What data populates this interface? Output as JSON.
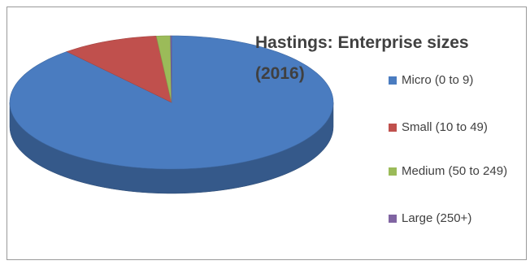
{
  "chart_data": {
    "type": "pie",
    "title": "Hastings: Enterprise sizes (2016)",
    "categories": [
      "Micro (0 to 9)",
      "Small (10 to 49)",
      "Medium (50 to 249)",
      "Large (250+)"
    ],
    "values": [
      88.8,
      9.7,
      1.4,
      0.1
    ],
    "colors": [
      "#4a7cc0",
      "#c0504d",
      "#9bbb59",
      "#8064a2"
    ],
    "legend_position": "right",
    "style": "3d"
  }
}
